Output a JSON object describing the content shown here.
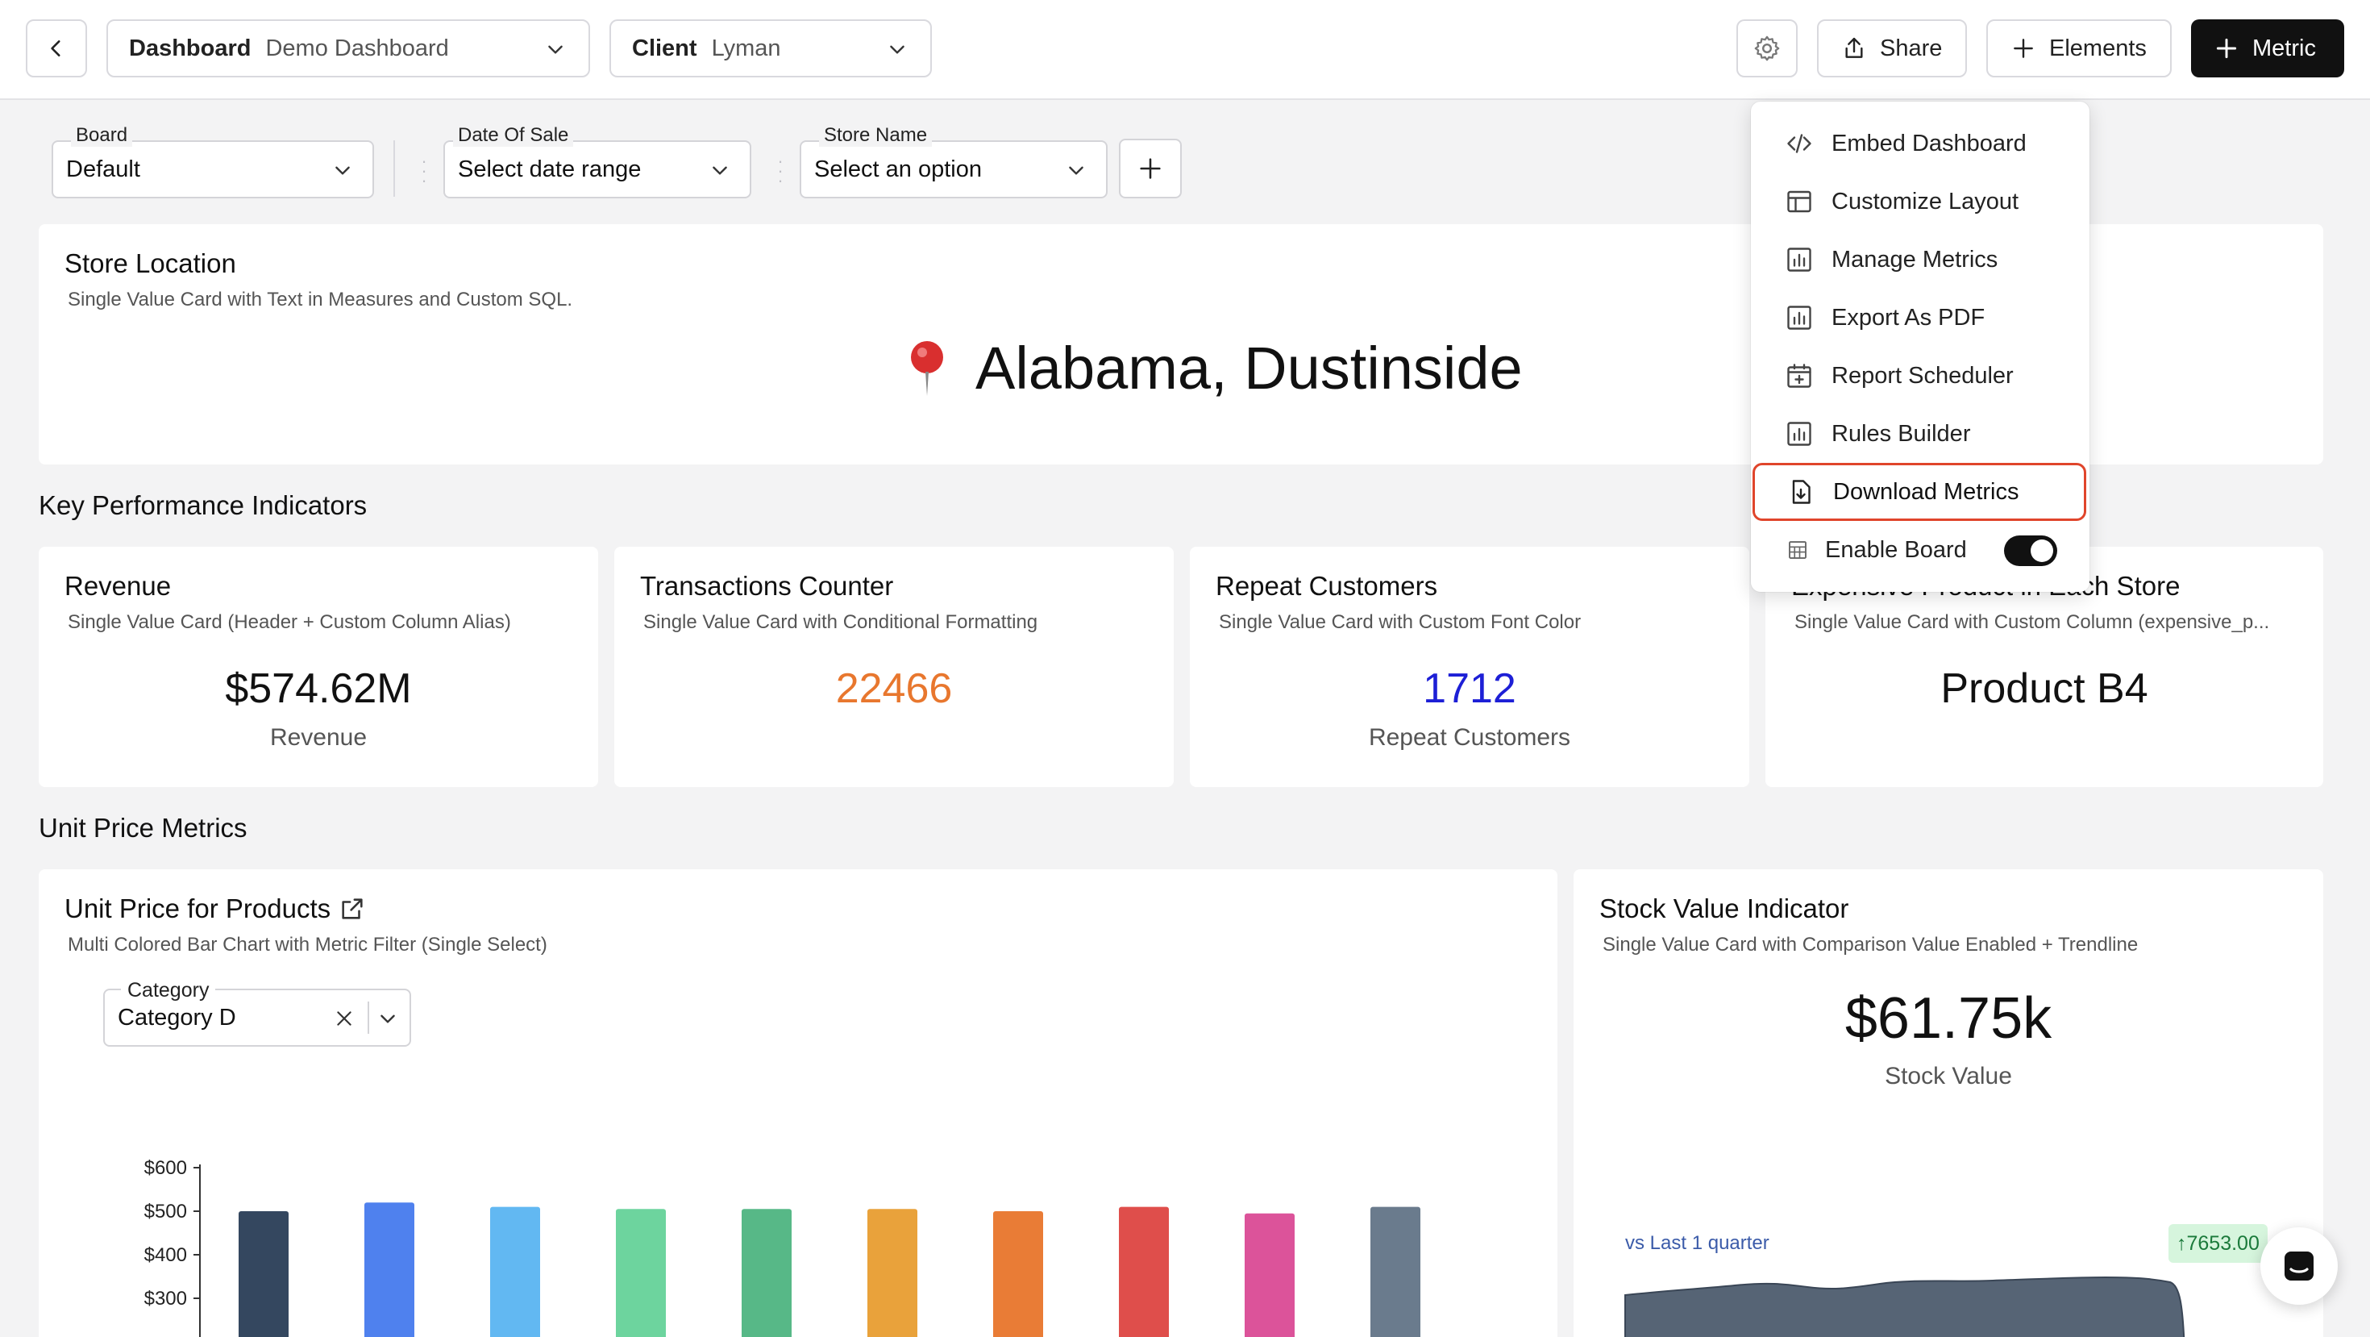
{
  "topbar": {
    "dashboard_label": "Dashboard",
    "dashboard_value": "Demo Dashboard",
    "client_label": "Client",
    "client_value": "Lyman",
    "share_label": "Share",
    "elements_label": "Elements",
    "metric_label": "Metric"
  },
  "filters": {
    "board": {
      "label": "Board",
      "value": "Default"
    },
    "date_of_sale": {
      "label": "Date Of Sale",
      "value": "Select date range"
    },
    "store_name": {
      "label": "Store Name",
      "value": "Select an option"
    }
  },
  "store_location": {
    "title": "Store Location",
    "subtitle": "Single Value Card with Text in Measures and Custom SQL.",
    "value": "Alabama, Dustinside"
  },
  "kpi_section": {
    "title": "Key Performance Indicators",
    "cards": [
      {
        "title": "Revenue",
        "subtitle": "Single Value Card (Header + Custom Column Alias)",
        "value": "$574.62M",
        "label": "Revenue",
        "color": "#111111"
      },
      {
        "title": "Transactions Counter",
        "subtitle": "Single Value Card with Conditional Formatting",
        "value": "22466",
        "label": "",
        "color": "#e8772e"
      },
      {
        "title": "Repeat Customers",
        "subtitle": "Single Value Card with Custom Font Color",
        "value": "1712",
        "label": "Repeat Customers",
        "color": "#1d1fd6"
      },
      {
        "title": "Expensive Product in Each Store",
        "subtitle": "Single Value Card with Custom Column (expensive_p...",
        "value": "Product B4",
        "label": "",
        "color": "#111111"
      }
    ]
  },
  "unit_price_section": {
    "title": "Unit Price Metrics"
  },
  "unit_price_card": {
    "title": "Unit Price for Products",
    "subtitle": "Multi Colored Bar Chart with Metric Filter (Single Select)",
    "category_label": "Category",
    "category_value": "Category D"
  },
  "stock_card": {
    "title": "Stock Value Indicator",
    "subtitle": "Single Value Card with Comparison Value Enabled + Trendline",
    "value": "$61.75k",
    "label": "Stock Value",
    "comparison_label": "vs Last 1 quarter",
    "delta": "↑7653.00"
  },
  "menu": {
    "items": [
      {
        "label": "Embed Dashboard",
        "icon": "code-icon"
      },
      {
        "label": "Customize Layout",
        "icon": "layout-icon"
      },
      {
        "label": "Manage Metrics",
        "icon": "chart-icon"
      },
      {
        "label": "Export As PDF",
        "icon": "chart-icon"
      },
      {
        "label": "Report Scheduler",
        "icon": "calendar-plus-icon"
      },
      {
        "label": "Rules Builder",
        "icon": "chart-icon"
      },
      {
        "label": "Download Metrics",
        "icon": "file-download-icon"
      },
      {
        "label": "Enable Board",
        "icon": "board-icon",
        "toggle": true
      }
    ]
  },
  "chart_data": {
    "type": "bar",
    "categories": [
      "",
      "",
      "",
      "",
      "",
      "",
      "",
      "",
      "",
      ""
    ],
    "values": [
      500,
      520,
      510,
      505,
      505,
      505,
      500,
      510,
      495,
      510
    ],
    "colors": [
      "#34475f",
      "#4f81ee",
      "#62b8f2",
      "#6dd49e",
      "#57b887",
      "#e9a23b",
      "#e97c36",
      "#df4e4b",
      "#dc539a",
      "#6a7b8d"
    ],
    "yticks": [
      "$600",
      "$500",
      "$400",
      "$300"
    ],
    "ylim": [
      0,
      600
    ]
  }
}
